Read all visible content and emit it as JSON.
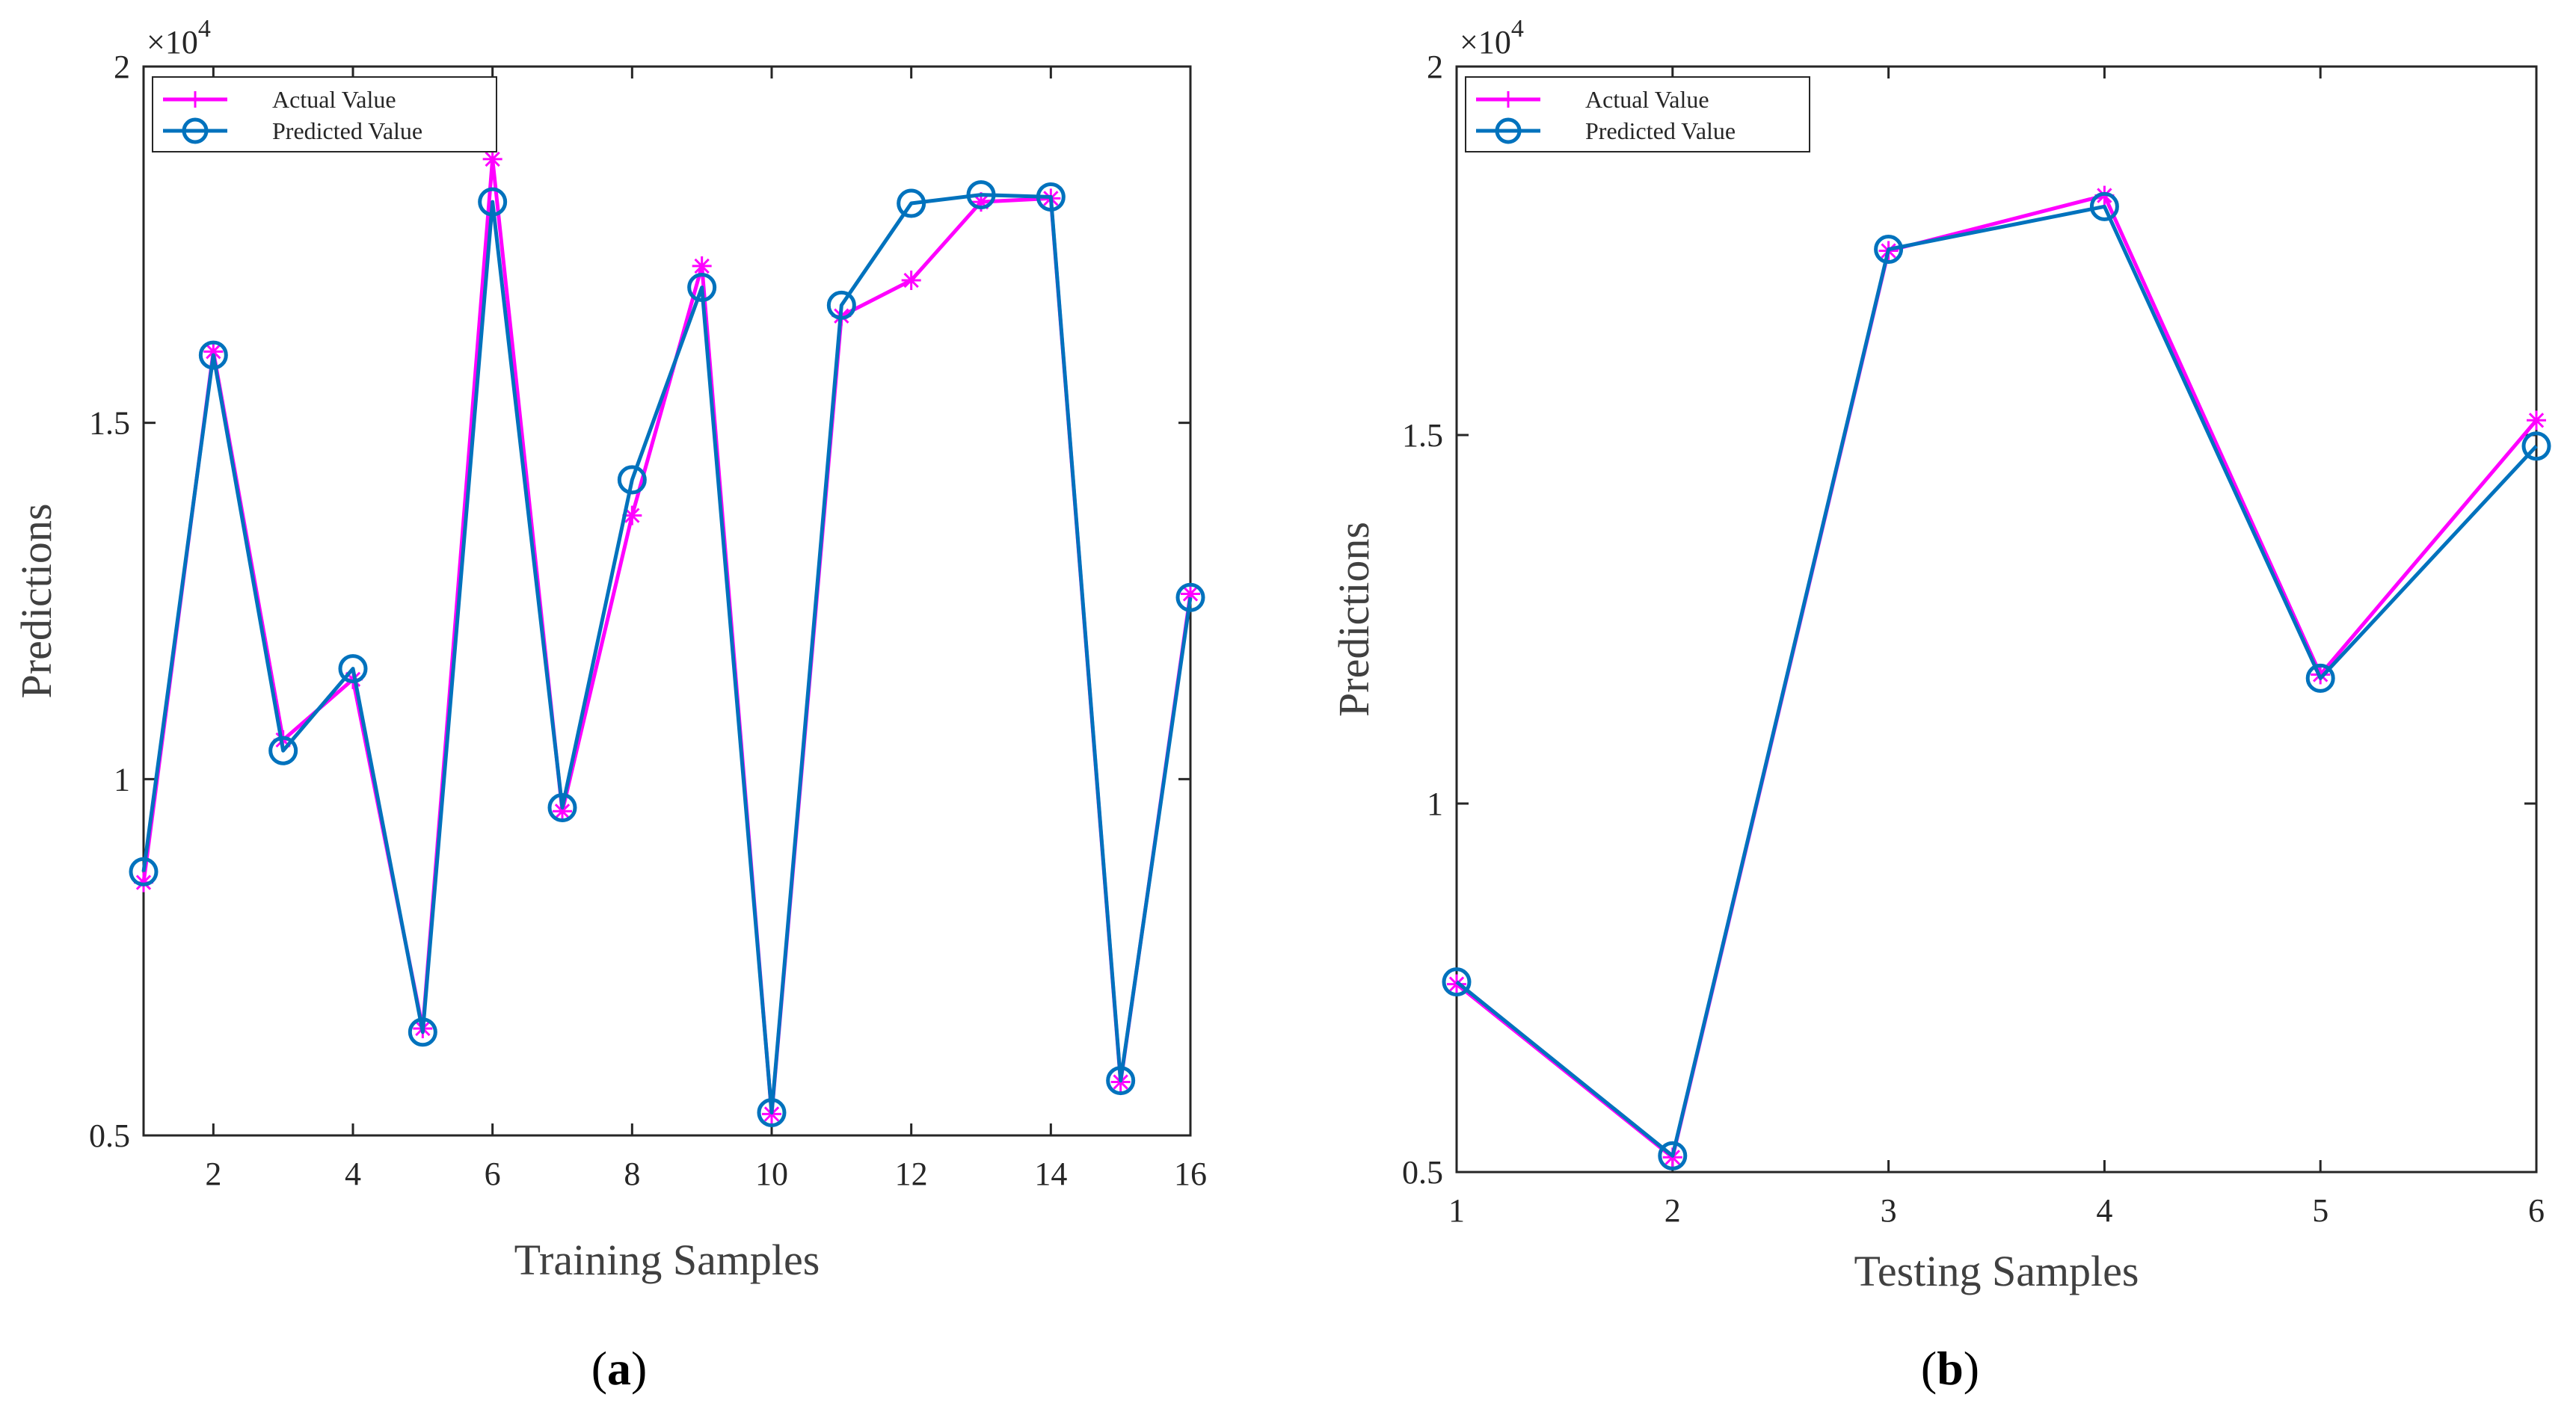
{
  "colors": {
    "actual": "#ff00ff",
    "predicted": "#0072bd",
    "axis": "#262626",
    "grid_text": "#404040"
  },
  "chart_data": [
    {
      "type": "line",
      "panel": "a",
      "caption_open": "(",
      "caption_letter": "a",
      "caption_close": ")",
      "xlabel": "Training Samples",
      "ylabel": "Predictions",
      "exponent": "×10",
      "exponent_power": "4",
      "x": [
        1,
        2,
        3,
        4,
        5,
        6,
        7,
        8,
        9,
        10,
        11,
        12,
        13,
        14,
        15,
        16
      ],
      "xlim": [
        1,
        16
      ],
      "ylim": [
        0.5,
        2
      ],
      "xticks": [
        2,
        4,
        6,
        8,
        10,
        12,
        14,
        16
      ],
      "yticks": [
        0.5,
        1,
        1.5,
        2
      ],
      "yticklabels": [
        "0.5",
        "1",
        "1.5",
        "2"
      ],
      "legend_position": "top-left",
      "series": [
        {
          "name": "Actual Value",
          "marker": "asterisk",
          "values": [
            0.855,
            1.6,
            1.055,
            1.14,
            0.65,
            1.87,
            0.955,
            1.37,
            1.72,
            0.53,
            1.65,
            1.7,
            1.81,
            1.815,
            0.575,
            1.26
          ]
        },
        {
          "name": "Predicted Value",
          "marker": "circle",
          "values": [
            0.87,
            1.595,
            1.04,
            1.155,
            0.645,
            1.81,
            0.96,
            1.42,
            1.69,
            0.532,
            1.665,
            1.808,
            1.82,
            1.817,
            0.577,
            1.255
          ]
        }
      ]
    },
    {
      "type": "line",
      "panel": "b",
      "caption_open": "(",
      "caption_letter": "b",
      "caption_close": ")",
      "xlabel": "Testing Samples",
      "ylabel": "Predictions",
      "exponent": "×10",
      "exponent_power": "4",
      "x": [
        1,
        2,
        3,
        4,
        5,
        6
      ],
      "xlim": [
        1,
        6
      ],
      "ylim": [
        0.5,
        2
      ],
      "xticks": [
        1,
        2,
        3,
        4,
        5,
        6
      ],
      "yticks": [
        0.5,
        1,
        1.5,
        2
      ],
      "yticklabels": [
        "0.5",
        "1",
        "1.5",
        "2"
      ],
      "legend_position": "top-left",
      "series": [
        {
          "name": "Actual Value",
          "marker": "asterisk",
          "values": [
            0.755,
            0.52,
            1.75,
            1.825,
            1.175,
            1.52
          ]
        },
        {
          "name": "Predicted Value",
          "marker": "circle",
          "values": [
            0.758,
            0.522,
            1.752,
            1.81,
            1.17,
            1.485
          ]
        }
      ]
    }
  ]
}
